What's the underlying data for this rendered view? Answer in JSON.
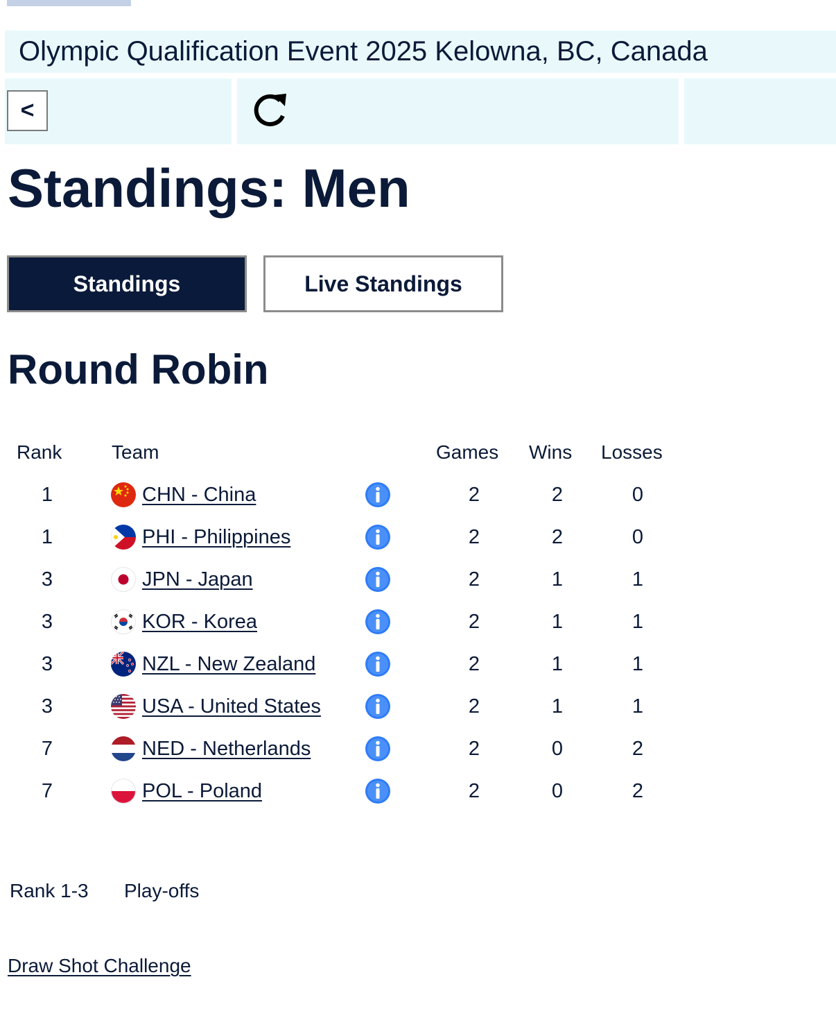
{
  "event": {
    "title": "Olympic Qualification Event 2025 Kelowna, BC, Canada"
  },
  "nav": {
    "back_label": "<",
    "refresh_icon": "refresh-icon"
  },
  "page": {
    "title": "Standings: Men"
  },
  "tabs": [
    {
      "label": "Standings",
      "active": true
    },
    {
      "label": "Live Standings",
      "active": false
    }
  ],
  "section": {
    "title": "Round Robin"
  },
  "table": {
    "headers": {
      "rank": "Rank",
      "team": "Team",
      "games": "Games",
      "wins": "Wins",
      "losses": "Losses"
    },
    "rows": [
      {
        "rank": "1",
        "team": "CHN - China",
        "flag": "china-flag-icon",
        "games": "2",
        "wins": "2",
        "losses": "0"
      },
      {
        "rank": "1",
        "team": "PHI - Philippines",
        "flag": "philippines-flag-icon",
        "games": "2",
        "wins": "2",
        "losses": "0"
      },
      {
        "rank": "3",
        "team": "JPN - Japan",
        "flag": "japan-flag-icon",
        "games": "2",
        "wins": "1",
        "losses": "1"
      },
      {
        "rank": "3",
        "team": "KOR - Korea",
        "flag": "korea-flag-icon",
        "games": "2",
        "wins": "1",
        "losses": "1"
      },
      {
        "rank": "3",
        "team": "NZL - New Zealand",
        "flag": "new-zealand-flag-icon",
        "games": "2",
        "wins": "1",
        "losses": "1"
      },
      {
        "rank": "3",
        "team": "USA - United States",
        "flag": "usa-flag-icon",
        "games": "2",
        "wins": "1",
        "losses": "1"
      },
      {
        "rank": "7",
        "team": "NED - Netherlands",
        "flag": "netherlands-flag-icon",
        "games": "2",
        "wins": "0",
        "losses": "2"
      },
      {
        "rank": "7",
        "team": "POL - Poland",
        "flag": "poland-flag-icon",
        "games": "2",
        "wins": "0",
        "losses": "2"
      }
    ]
  },
  "legend": {
    "rank_range": "Rank 1-3",
    "label": "Play-offs"
  },
  "links": {
    "draw_shot": "Draw Shot Challenge"
  },
  "colors": {
    "navy": "#0a1a3a",
    "panel_bg": "#e9f9fb",
    "info_blue": "#2f7cf6"
  }
}
